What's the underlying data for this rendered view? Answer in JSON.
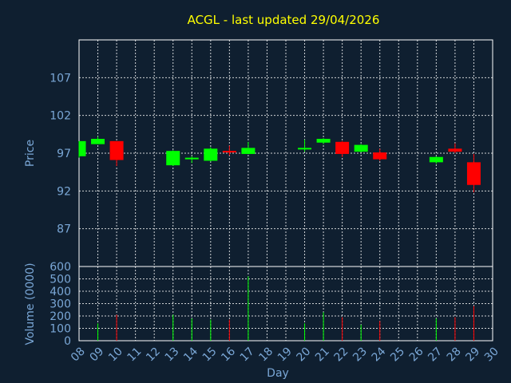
{
  "chart_data": {
    "type": "candlestick",
    "title": "ACGL - last updated 29/04/2026",
    "xlabel": "Day",
    "price_panel": {
      "ylabel": "Price",
      "ylim": [
        82,
        112
      ],
      "yticks": [
        87,
        92,
        97,
        102,
        107
      ],
      "grid": true
    },
    "volume_panel": {
      "ylabel": "Volume (0000)",
      "ylim": [
        0,
        600
      ],
      "yticks": [
        0,
        100,
        200,
        300,
        400,
        500,
        600
      ],
      "grid": true
    },
    "x_ticks": [
      "08",
      "09",
      "10",
      "11",
      "12",
      "13",
      "14",
      "15",
      "16",
      "17",
      "18",
      "19",
      "20",
      "21",
      "22",
      "23",
      "24",
      "25",
      "26",
      "27",
      "28",
      "29",
      "30"
    ],
    "colors": {
      "up": "#00ff00",
      "down": "#ff0000"
    },
    "candles": [
      {
        "day": 8,
        "open": 96.6,
        "close": 98.6,
        "high": 98.6,
        "low": 96.4,
        "volume": 0
      },
      {
        "day": 9,
        "open": 98.2,
        "close": 98.9,
        "high": 99.2,
        "low": 98.2,
        "volume": 140
      },
      {
        "day": 10,
        "open": 98.6,
        "close": 96.1,
        "high": 98.6,
        "low": 95.3,
        "volume": 210
      },
      {
        "day": 13,
        "open": 95.4,
        "close": 97.3,
        "high": 97.4,
        "low": 95.3,
        "volume": 210
      },
      {
        "day": 14,
        "open": 96.2,
        "close": 96.3,
        "high": 96.6,
        "low": 95.7,
        "volume": 180
      },
      {
        "day": 15,
        "open": 96.0,
        "close": 97.6,
        "high": 97.8,
        "low": 95.9,
        "volume": 170
      },
      {
        "day": 16,
        "open": 97.2,
        "close": 97.1,
        "high": 98.0,
        "low": 96.7,
        "volume": 170
      },
      {
        "day": 17,
        "open": 96.9,
        "close": 97.7,
        "high": 98.5,
        "low": 96.9,
        "volume": 520
      },
      {
        "day": 20,
        "open": 97.5,
        "close": 97.6,
        "high": 98.8,
        "low": 97.2,
        "volume": 140
      },
      {
        "day": 21,
        "open": 98.4,
        "close": 98.9,
        "high": 99.0,
        "low": 98.2,
        "volume": 230
      },
      {
        "day": 22,
        "open": 98.5,
        "close": 96.9,
        "high": 98.6,
        "low": 96.5,
        "volume": 190
      },
      {
        "day": 23,
        "open": 97.2,
        "close": 98.1,
        "high": 98.2,
        "low": 97.1,
        "volume": 130
      },
      {
        "day": 24,
        "open": 97.1,
        "close": 96.2,
        "high": 97.6,
        "low": 96.0,
        "volume": 160
      },
      {
        "day": 27,
        "open": 95.8,
        "close": 96.5,
        "high": 96.6,
        "low": 95.6,
        "volume": 180
      },
      {
        "day": 28,
        "open": 97.6,
        "close": 97.2,
        "high": 98.3,
        "low": 97.0,
        "volume": 190
      },
      {
        "day": 29,
        "open": 95.8,
        "close": 92.8,
        "high": 96.9,
        "low": 91.8,
        "volume": 280
      }
    ]
  }
}
